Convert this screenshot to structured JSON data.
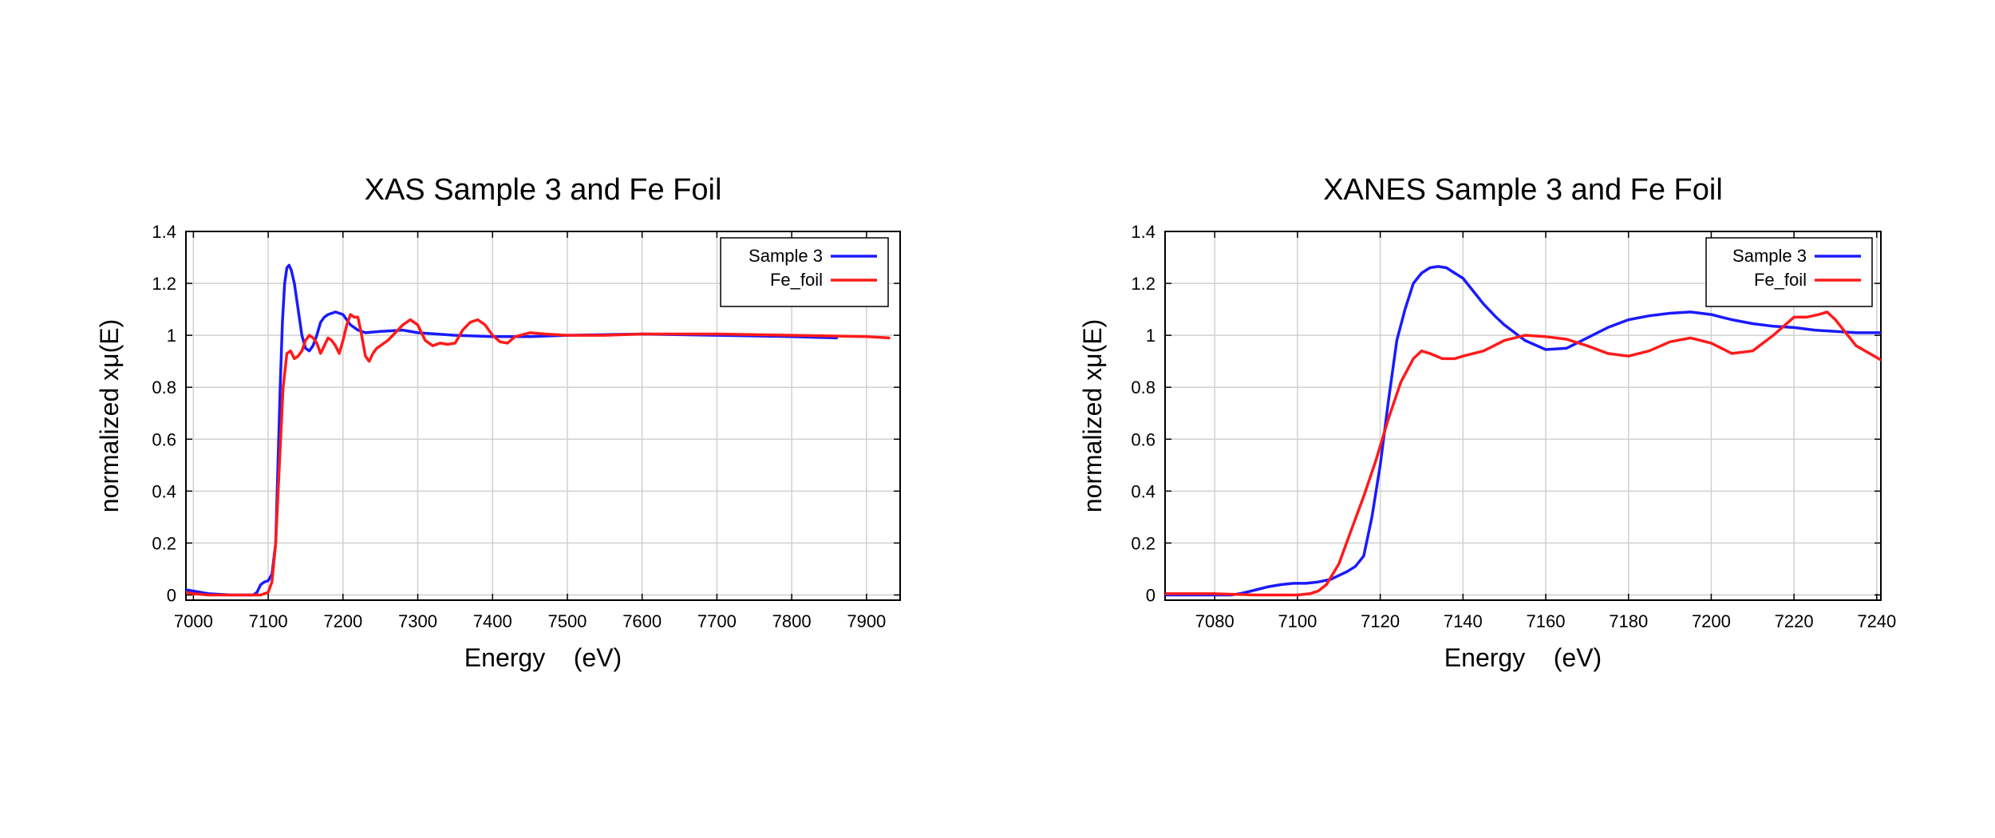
{
  "chart_data": [
    {
      "type": "line",
      "title": "XAS Sample 3 and Fe Foil",
      "xlabel": "Energy    (eV)",
      "ylabel": "normalized xμ(E)",
      "xlim": [
        6990,
        7945
      ],
      "ylim": [
        -0.02,
        1.4
      ],
      "xticks": [
        7000,
        7100,
        7200,
        7300,
        7400,
        7500,
        7600,
        7700,
        7800,
        7900
      ],
      "yticks": [
        0,
        0.2,
        0.4,
        0.6,
        0.8,
        1,
        1.2,
        1.4
      ],
      "ytick_labels": [
        "0",
        "0.2",
        "0.4",
        "0.6",
        "0.8",
        "1",
        "1.2",
        "1.4"
      ],
      "grid": true,
      "legend_position": "top-right",
      "series": [
        {
          "name": "Sample 3",
          "color": "#1a1aff",
          "x": [
            6990,
            7000,
            7020,
            7050,
            7080,
            7085,
            7090,
            7095,
            7100,
            7105,
            7110,
            7113,
            7116,
            7119,
            7122,
            7125,
            7128,
            7131,
            7135,
            7140,
            7145,
            7150,
            7155,
            7160,
            7165,
            7170,
            7175,
            7180,
            7190,
            7200,
            7210,
            7220,
            7230,
            7250,
            7280,
            7300,
            7350,
            7400,
            7450,
            7500,
            7600,
            7700,
            7800,
            7860
          ],
          "y": [
            0.02,
            0.015,
            0.005,
            0.0,
            0.0,
            0.01,
            0.04,
            0.05,
            0.055,
            0.08,
            0.2,
            0.5,
            0.8,
            1.05,
            1.2,
            1.26,
            1.27,
            1.25,
            1.2,
            1.1,
            1.0,
            0.95,
            0.94,
            0.96,
            1.0,
            1.05,
            1.07,
            1.08,
            1.09,
            1.08,
            1.04,
            1.02,
            1.01,
            1.015,
            1.02,
            1.01,
            1.0,
            0.995,
            0.995,
            1.0,
            1.005,
            1.0,
            0.995,
            0.99
          ]
        },
        {
          "name": "Fe_foil",
          "color": "#ff1a1a",
          "x": [
            6990,
            7000,
            7020,
            7050,
            7070,
            7090,
            7100,
            7105,
            7110,
            7115,
            7120,
            7125,
            7130,
            7135,
            7140,
            7145,
            7150,
            7155,
            7160,
            7165,
            7170,
            7175,
            7180,
            7185,
            7190,
            7195,
            7200,
            7205,
            7210,
            7215,
            7220,
            7225,
            7230,
            7235,
            7240,
            7245,
            7250,
            7260,
            7270,
            7280,
            7290,
            7300,
            7310,
            7320,
            7330,
            7340,
            7350,
            7360,
            7370,
            7380,
            7390,
            7400,
            7410,
            7420,
            7430,
            7450,
            7470,
            7500,
            7550,
            7600,
            7700,
            7800,
            7900,
            7930
          ],
          "y": [
            0.01,
            0.005,
            0.0,
            0.0,
            0.0,
            0.0,
            0.01,
            0.05,
            0.2,
            0.5,
            0.8,
            0.93,
            0.94,
            0.91,
            0.92,
            0.94,
            0.98,
            1.0,
            0.99,
            0.97,
            0.93,
            0.96,
            0.99,
            0.98,
            0.96,
            0.93,
            0.98,
            1.04,
            1.08,
            1.07,
            1.07,
            1.0,
            0.92,
            0.9,
            0.93,
            0.95,
            0.96,
            0.98,
            1.01,
            1.04,
            1.06,
            1.04,
            0.98,
            0.96,
            0.97,
            0.965,
            0.97,
            1.02,
            1.05,
            1.06,
            1.04,
            1.0,
            0.975,
            0.97,
            0.995,
            1.01,
            1.005,
            1.0,
            1.0,
            1.005,
            1.005,
            1.0,
            0.995,
            0.99
          ]
        }
      ]
    },
    {
      "type": "line",
      "title": "XANES Sample 3 and Fe Foil",
      "xlabel": "Energy    (eV)",
      "ylabel": "normalized xμ(E)",
      "xlim": [
        7068,
        7241
      ],
      "ylim": [
        -0.02,
        1.4
      ],
      "xticks": [
        7080,
        7100,
        7120,
        7140,
        7160,
        7180,
        7200,
        7220,
        7240
      ],
      "yticks": [
        0,
        0.2,
        0.4,
        0.6,
        0.8,
        1,
        1.2,
        1.4
      ],
      "ytick_labels": [
        "0",
        "0.2",
        "0.4",
        "0.6",
        "0.8",
        "1",
        "1.2",
        "1.4"
      ],
      "grid": true,
      "legend_position": "top-right",
      "series": [
        {
          "name": "Sample 3",
          "color": "#1a1aff",
          "x": [
            7068,
            7075,
            7080,
            7084,
            7086,
            7088,
            7090,
            7093,
            7096,
            7099,
            7102,
            7105,
            7108,
            7110,
            7112,
            7114,
            7116,
            7118,
            7120,
            7122,
            7124,
            7126,
            7128,
            7130,
            7132,
            7134,
            7136,
            7138,
            7140,
            7142,
            7145,
            7148,
            7150,
            7155,
            7160,
            7165,
            7170,
            7175,
            7180,
            7185,
            7190,
            7195,
            7200,
            7205,
            7210,
            7215,
            7220,
            7225,
            7230,
            7235,
            7241
          ],
          "y": [
            0.0,
            0.0,
            0.0,
            0.0,
            0.005,
            0.012,
            0.02,
            0.032,
            0.04,
            0.045,
            0.045,
            0.05,
            0.06,
            0.075,
            0.09,
            0.11,
            0.15,
            0.3,
            0.5,
            0.75,
            0.98,
            1.1,
            1.2,
            1.24,
            1.26,
            1.265,
            1.26,
            1.24,
            1.22,
            1.18,
            1.12,
            1.07,
            1.04,
            0.98,
            0.945,
            0.95,
            0.99,
            1.03,
            1.06,
            1.075,
            1.085,
            1.09,
            1.08,
            1.06,
            1.045,
            1.035,
            1.03,
            1.02,
            1.015,
            1.01,
            1.01
          ]
        },
        {
          "name": "Fe_foil",
          "color": "#ff1a1a",
          "x": [
            7068,
            7080,
            7090,
            7095,
            7100,
            7103,
            7105,
            7107,
            7110,
            7113,
            7116,
            7119,
            7122,
            7125,
            7128,
            7130,
            7132,
            7135,
            7138,
            7140,
            7145,
            7150,
            7155,
            7160,
            7165,
            7170,
            7175,
            7180,
            7185,
            7190,
            7195,
            7200,
            7205,
            7210,
            7215,
            7220,
            7223,
            7226,
            7228,
            7230,
            7235,
            7241
          ],
          "y": [
            0.005,
            0.005,
            0.0,
            0.0,
            0.0,
            0.005,
            0.015,
            0.04,
            0.12,
            0.25,
            0.38,
            0.52,
            0.68,
            0.82,
            0.91,
            0.94,
            0.93,
            0.91,
            0.91,
            0.92,
            0.94,
            0.98,
            1.0,
            0.995,
            0.985,
            0.96,
            0.93,
            0.92,
            0.94,
            0.975,
            0.99,
            0.97,
            0.93,
            0.94,
            1.0,
            1.07,
            1.07,
            1.08,
            1.09,
            1.06,
            0.96,
            0.905
          ]
        }
      ]
    }
  ]
}
